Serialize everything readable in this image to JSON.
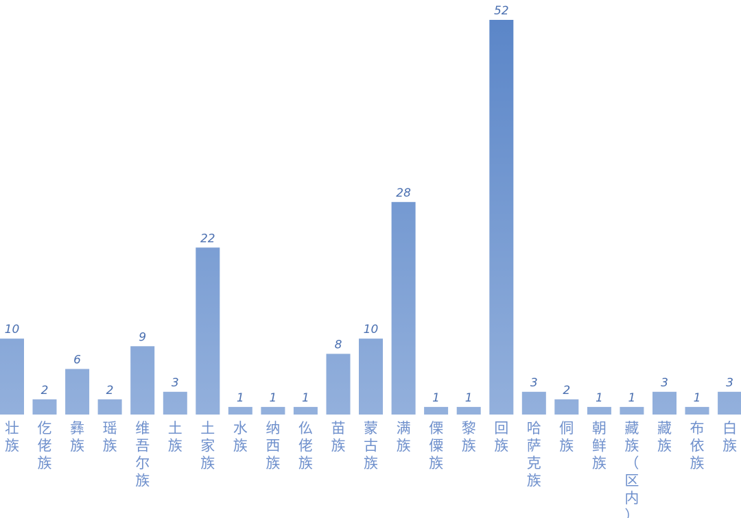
{
  "chart_data": {
    "type": "bar",
    "categories": [
      "壮族",
      "仡佬族",
      "彝族",
      "瑶族",
      "维吾尔族",
      "土族",
      "土家族",
      "水族",
      "纳西族",
      "仫佬族",
      "苗族",
      "蒙古族",
      "满族",
      "傈僳族",
      "黎族",
      "回族",
      "哈萨克族",
      "侗族",
      "朝鲜族",
      "藏族（区内）",
      "藏族",
      "布依族",
      "白族"
    ],
    "values": [
      10,
      2,
      6,
      2,
      9,
      3,
      22,
      1,
      1,
      1,
      8,
      10,
      28,
      1,
      1,
      52,
      3,
      2,
      1,
      1,
      3,
      1,
      3
    ],
    "title": "",
    "xlabel": "",
    "ylabel": "",
    "ylim": [
      0,
      52
    ],
    "grid": false,
    "legend": "none",
    "colors": {
      "bar_top": "#5b86c8",
      "bar_bottom": "#93b0dc",
      "value_label": "#4a6fb0",
      "category_label": "#6f90cc"
    }
  }
}
